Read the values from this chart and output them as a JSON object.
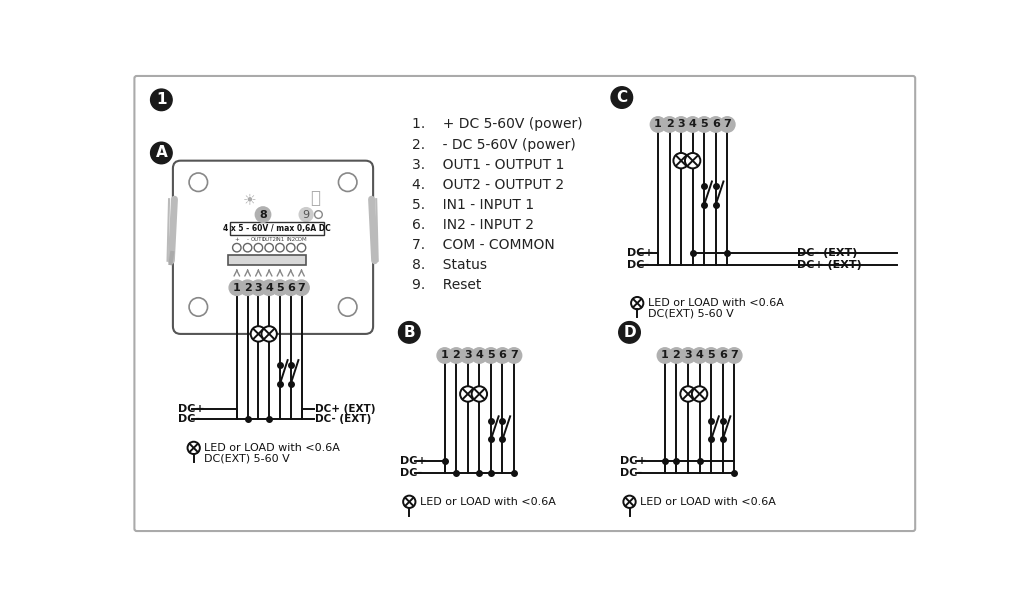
{
  "bg_color": "#ffffff",
  "line_color": "#111111",
  "circle_bg_gray": "#b0b0b0",
  "circle_text_dark": "#333333",
  "dark_bg": "#1a1a1a",
  "dark_text": "#ffffff",
  "device_edge": "#555555",
  "legend_items": [
    "+ DC 5-60V (power)",
    "- DC 5-60V (power)",
    "OUT1 - OUTPUT 1",
    "OUT2 - OUTPUT 2",
    "IN1 - INPUT 1",
    "IN2 - INPUT 2",
    "COM - COMMON",
    "Status",
    "Reset"
  ]
}
